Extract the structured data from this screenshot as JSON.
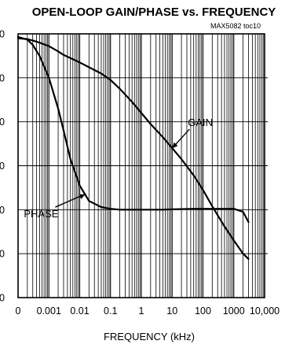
{
  "chart_data": {
    "type": "line",
    "title": "OPEN-LOOP GAIN/PHASE vs. FREQUENCY",
    "subtitle": "MAX5082 toc10",
    "xlabel": "FREQUENCY (kHz)",
    "x_scale": "log",
    "xlim": [
      0.0001,
      10000
    ],
    "x_ticks": [
      0.0001,
      0.001,
      0.01,
      0.1,
      1,
      10,
      100,
      1000,
      10000
    ],
    "x_tick_labels": [
      "0",
      "0.001",
      "0.01",
      "0.1",
      "1",
      "10",
      "100",
      "1000",
      "10,000"
    ],
    "ylim": [
      0,
      6
    ],
    "y_ticks": [
      0,
      1,
      2,
      3,
      4,
      5,
      6
    ],
    "y_tick_labels": [
      "0",
      "0",
      "0",
      "0",
      "0",
      "0",
      "0"
    ],
    "grid": true,
    "series": [
      {
        "name": "GAIN",
        "x": [
          0.0001,
          0.0002,
          0.0003,
          0.0005,
          0.001,
          0.002,
          0.003,
          0.005,
          0.01,
          0.02,
          0.05,
          0.1,
          0.2,
          0.5,
          1,
          2,
          5,
          10,
          20,
          50,
          100,
          200,
          500,
          1000,
          2000,
          3000
        ],
        "y": [
          5.9,
          5.88,
          5.85,
          5.8,
          5.72,
          5.6,
          5.52,
          5.45,
          5.35,
          5.24,
          5.1,
          4.95,
          4.75,
          4.45,
          4.2,
          3.95,
          3.65,
          3.4,
          3.15,
          2.78,
          2.45,
          2.08,
          1.62,
          1.3,
          1.0,
          0.88
        ]
      },
      {
        "name": "PHASE",
        "x": [
          0.0001,
          0.0002,
          0.0003,
          0.0005,
          0.001,
          0.002,
          0.003,
          0.005,
          0.01,
          0.02,
          0.05,
          0.1,
          0.2,
          0.5,
          1,
          5,
          10,
          50,
          100,
          500,
          1000,
          2000,
          3000
        ],
        "y": [
          5.93,
          5.87,
          5.75,
          5.5,
          5.0,
          4.3,
          3.8,
          3.15,
          2.55,
          2.2,
          2.06,
          2.02,
          2.0,
          2.0,
          2.0,
          2.0,
          2.01,
          2.02,
          2.02,
          2.02,
          2.02,
          1.95,
          1.72
        ]
      }
    ],
    "annotations": [
      {
        "text": "GAIN",
        "series": "GAIN",
        "x": 10
      },
      {
        "text": "PHASE",
        "series": "PHASE",
        "x": 0.015
      }
    ]
  }
}
